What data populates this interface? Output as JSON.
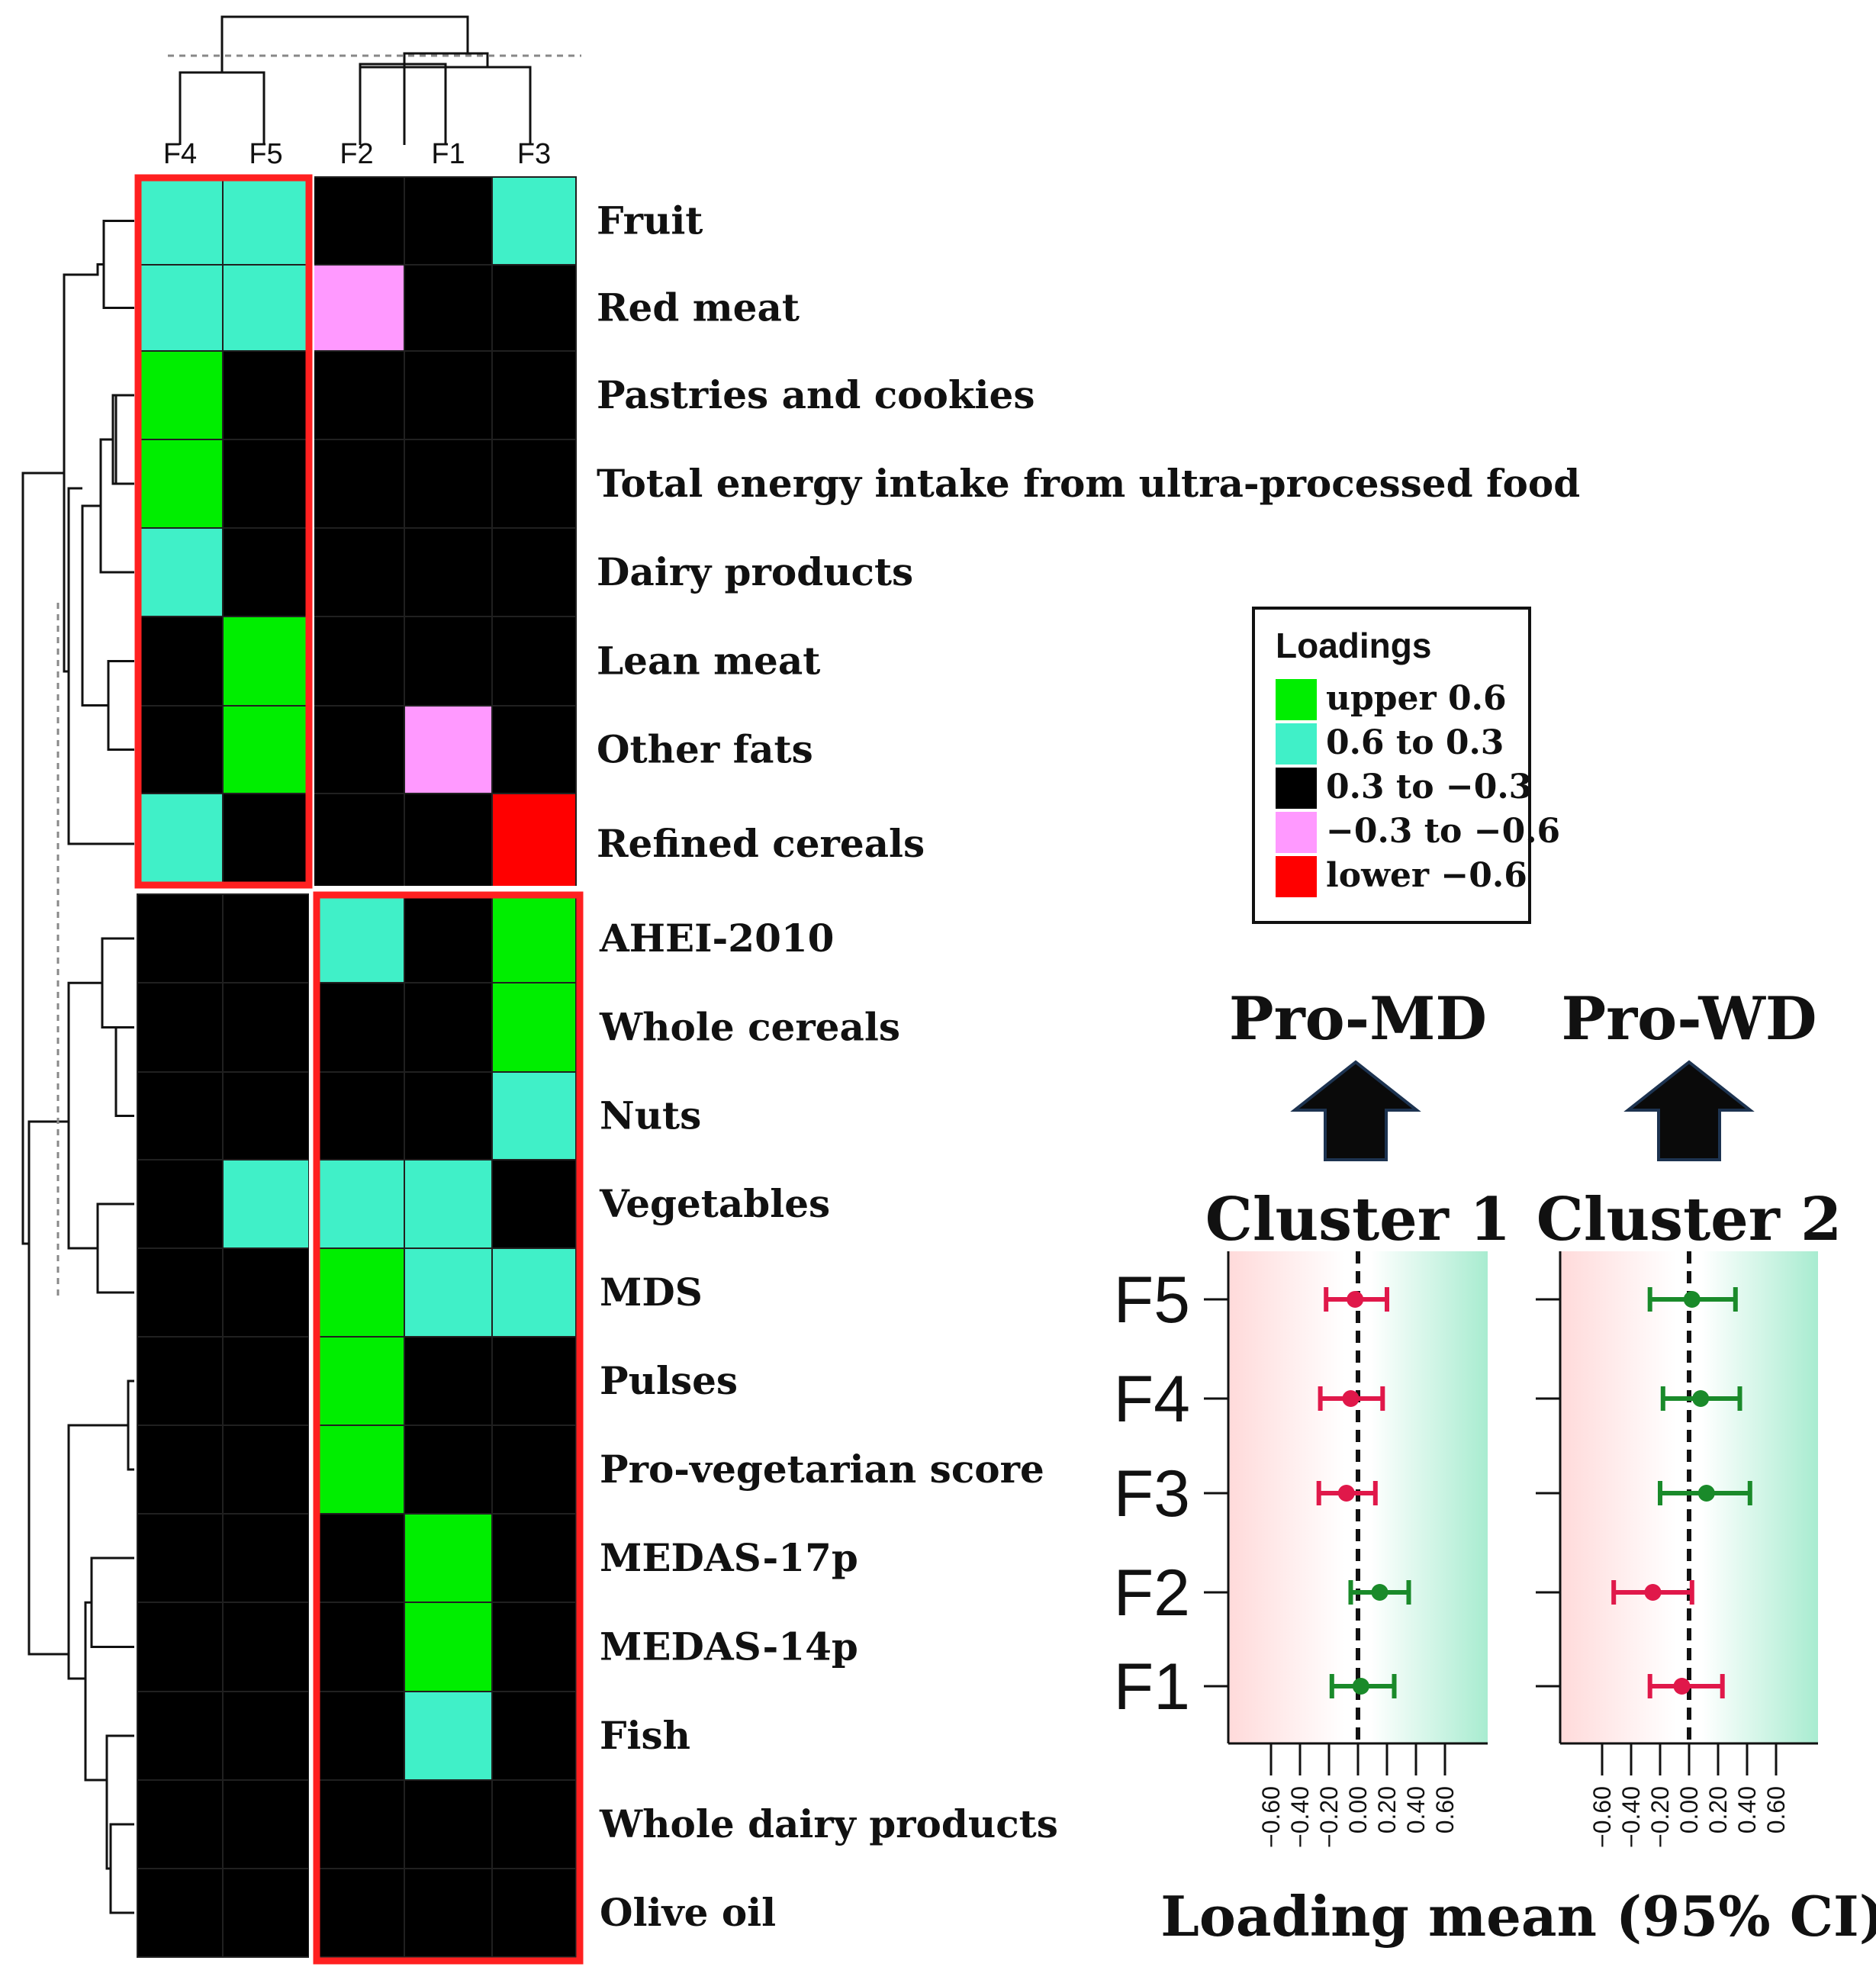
{
  "chart_data": [
    {
      "type": "heatmap",
      "columns": [
        "F4",
        "F5",
        "F2",
        "F1",
        "F3"
      ],
      "rows": [
        "Fruit",
        "Red meat",
        "Pastries and cookies",
        "Total energy intake from ultra-processed food",
        "Dairy products",
        "Lean meat",
        "Other fats",
        "Refined cereals",
        "AHEI-2010",
        "Whole cereals",
        "Nuts",
        "Vegetables",
        "MDS",
        "Pulses",
        "Pro-vegetarian score",
        "MEDAS-17p",
        "MEDAS-14p",
        "Fish",
        "Whole dairy products",
        "Olive oil"
      ],
      "values": [
        [
          "0.6 to 0.3",
          "0.6 to 0.3",
          "0.3 to −0.3",
          "0.3 to −0.3",
          "0.6 to 0.3"
        ],
        [
          "0.6 to 0.3",
          "0.6 to 0.3",
          "−0.3 to −0.6",
          "0.3 to −0.3",
          "0.3 to −0.3"
        ],
        [
          "upper 0.6",
          "0.3 to −0.3",
          "0.3 to −0.3",
          "0.3 to −0.3",
          "0.3 to −0.3"
        ],
        [
          "upper 0.6",
          "0.3 to −0.3",
          "0.3 to −0.3",
          "0.3 to −0.3",
          "0.3 to −0.3"
        ],
        [
          "0.6 to 0.3",
          "0.3 to −0.3",
          "0.3 to −0.3",
          "0.3 to −0.3",
          "0.3 to −0.3"
        ],
        [
          "0.3 to −0.3",
          "upper 0.6",
          "0.3 to −0.3",
          "0.3 to −0.3",
          "0.3 to −0.3"
        ],
        [
          "0.3 to −0.3",
          "upper 0.6",
          "0.3 to −0.3",
          "−0.3 to −0.6",
          "0.3 to −0.3"
        ],
        [
          "0.6 to 0.3",
          "0.3 to −0.3",
          "0.3 to −0.3",
          "0.3 to −0.3",
          "lower −0.6"
        ],
        [
          "0.3 to −0.3",
          "0.3 to −0.3",
          "0.6 to 0.3",
          "0.3 to −0.3",
          "upper 0.6"
        ],
        [
          "0.3 to −0.3",
          "0.3 to −0.3",
          "0.3 to −0.3",
          "0.3 to −0.3",
          "upper 0.6"
        ],
        [
          "0.3 to −0.3",
          "0.3 to −0.3",
          "0.3 to −0.3",
          "0.3 to −0.3",
          "0.6 to 0.3"
        ],
        [
          "0.3 to −0.3",
          "0.6 to 0.3",
          "0.6 to 0.3",
          "0.6 to 0.3",
          "0.3 to −0.3"
        ],
        [
          "0.3 to −0.3",
          "0.3 to −0.3",
          "upper 0.6",
          "0.6 to 0.3",
          "0.6 to 0.3"
        ],
        [
          "0.3 to −0.3",
          "0.3 to −0.3",
          "upper 0.6",
          "0.3 to −0.3",
          "0.3 to −0.3"
        ],
        [
          "0.3 to −0.3",
          "0.3 to −0.3",
          "upper 0.6",
          "0.3 to −0.3",
          "0.3 to −0.3"
        ],
        [
          "0.3 to −0.3",
          "0.3 to −0.3",
          "0.3 to −0.3",
          "upper 0.6",
          "0.3 to −0.3"
        ],
        [
          "0.3 to −0.3",
          "0.3 to −0.3",
          "0.3 to −0.3",
          "upper 0.6",
          "0.3 to −0.3"
        ],
        [
          "0.3 to −0.3",
          "0.3 to −0.3",
          "0.3 to −0.3",
          "0.6 to 0.3",
          "0.3 to −0.3"
        ],
        [
          "0.3 to −0.3",
          "0.3 to −0.3",
          "0.3 to −0.3",
          "0.3 to −0.3",
          "0.3 to −0.3"
        ],
        [
          "0.3 to −0.3",
          "0.3 to −0.3",
          "0.3 to −0.3",
          "0.3 to −0.3",
          "0.3 to −0.3"
        ]
      ],
      "legend": {
        "title": "Loadings",
        "placement": "right",
        "items": [
          {
            "label": "upper 0.6",
            "color": "#00ee00"
          },
          {
            "label": "0.6 to 0.3",
            "color": "#40f0c8"
          },
          {
            "label": "0.3 to −0.3",
            "color": "#000000"
          },
          {
            "label": "−0.3 to −0.6",
            "color": "#ff99ff"
          },
          {
            "label": "lower −0.6",
            "color": "#ff0000"
          }
        ]
      },
      "highlight_boxes": [
        {
          "rows": [
            "Fruit",
            "Refined cereals"
          ],
          "columns": [
            "F4",
            "F5"
          ],
          "color": "#ff2020"
        },
        {
          "rows": [
            "AHEI-2010",
            "Olive oil"
          ],
          "columns": [
            "F2",
            "F3"
          ],
          "color": "#ff2020"
        }
      ],
      "row_dendrogram": true,
      "column_dendrogram": true
    },
    {
      "type": "scatter",
      "subtype": "forest",
      "xlabel": "Loading mean (95% CI)",
      "categories": [
        "F5",
        "F4",
        "F3",
        "F2",
        "F1"
      ],
      "xticks": [
        "−0.60",
        "−0.40",
        "−0.20",
        "0.00",
        "0.20",
        "0.40",
        "0.60"
      ],
      "xlim": [
        -0.95,
        0.95
      ],
      "reference_line": 0,
      "colors": {
        "negative": "#e0184a",
        "positive": "#1a8a2a"
      },
      "panels": [
        {
          "title": "Cluster 1",
          "header": "Pro-MD",
          "points": [
            {
              "factor": "F5",
              "mean": -0.02,
              "lower": -0.22,
              "upper": 0.2,
              "sign": "negative"
            },
            {
              "factor": "F4",
              "mean": -0.05,
              "lower": -0.26,
              "upper": 0.17,
              "sign": "negative"
            },
            {
              "factor": "F3",
              "mean": -0.08,
              "lower": -0.27,
              "upper": 0.12,
              "sign": "negative"
            },
            {
              "factor": "F2",
              "mean": 0.15,
              "lower": -0.05,
              "upper": 0.35,
              "sign": "positive"
            },
            {
              "factor": "F1",
              "mean": 0.02,
              "lower": -0.18,
              "upper": 0.25,
              "sign": "positive"
            }
          ]
        },
        {
          "title": "Cluster 2",
          "header": "Pro-WD",
          "points": [
            {
              "factor": "F5",
              "mean": 0.02,
              "lower": -0.27,
              "upper": 0.32,
              "sign": "positive"
            },
            {
              "factor": "F4",
              "mean": 0.08,
              "lower": -0.18,
              "upper": 0.35,
              "sign": "positive"
            },
            {
              "factor": "F3",
              "mean": 0.12,
              "lower": -0.2,
              "upper": 0.42,
              "sign": "positive"
            },
            {
              "factor": "F2",
              "mean": -0.25,
              "lower": -0.52,
              "upper": 0.02,
              "sign": "negative"
            },
            {
              "factor": "F1",
              "mean": -0.05,
              "lower": -0.27,
              "upper": 0.23,
              "sign": "negative"
            }
          ]
        }
      ]
    }
  ]
}
